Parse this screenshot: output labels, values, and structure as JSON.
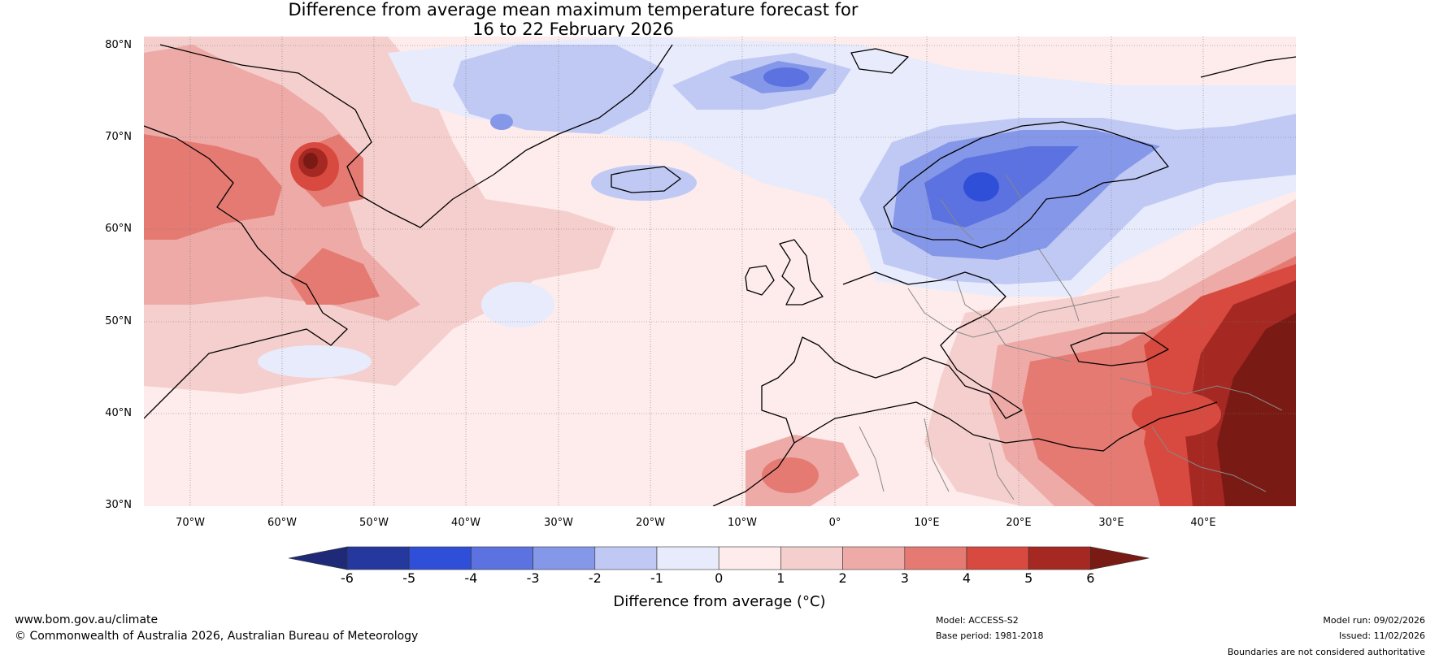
{
  "title_line1": "Difference from average mean maximum temperature forecast for",
  "title_line2": "16 to 22 February 2026",
  "latitudes": [
    "80°N",
    "70°N",
    "60°N",
    "50°N",
    "40°N",
    "30°N"
  ],
  "longitudes": [
    "70°W",
    "60°W",
    "50°W",
    "40°W",
    "30°W",
    "20°W",
    "10°W",
    "0°",
    "10°E",
    "20°E",
    "30°E",
    "40°E"
  ],
  "colorbar": {
    "ticks": [
      "-6",
      "-5",
      "-4",
      "-3",
      "-2",
      "-1",
      "0",
      "1",
      "2",
      "3",
      "4",
      "5",
      "6"
    ],
    "colors": [
      "#24389e",
      "#2f4fd8",
      "#5b72e0",
      "#8597e8",
      "#c0c9f4",
      "#e8ebfb",
      "#fdeceb",
      "#f5cfcd",
      "#eeaaa6",
      "#e57a72",
      "#d84a3f",
      "#a52822"
    ],
    "under_color": "#1e2a78",
    "over_color": "#7a1a14",
    "label": "Difference from average (°C)"
  },
  "footer": {
    "website": "www.bom.gov.au/climate",
    "copyright": "© Commonwealth of Australia 2026, Australian Bureau of Meteorology",
    "model": "Model: ACCESS-S2",
    "base_period": "Base period: 1981-2018",
    "model_run": "Model run: 09/02/2026",
    "issued": "Issued: 11/02/2026",
    "disclaimer": "Boundaries are not considered authoritative"
  }
}
